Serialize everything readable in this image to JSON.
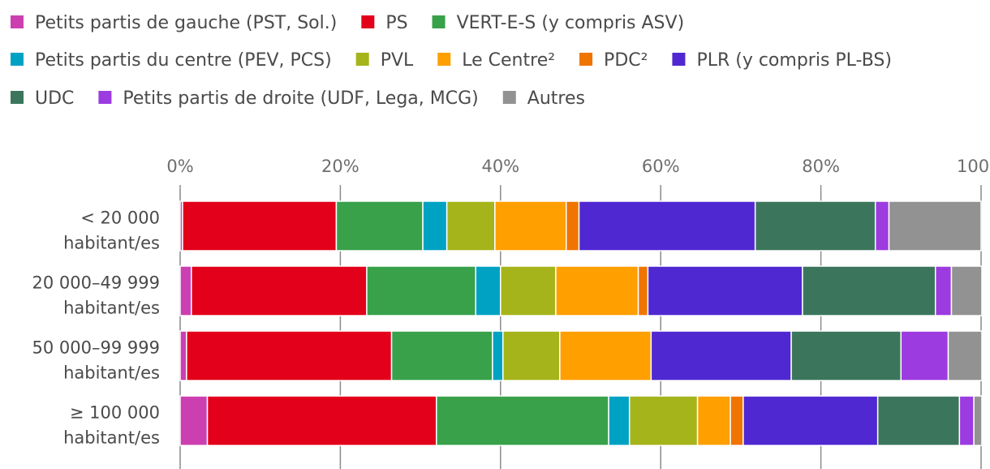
{
  "chart_data": {
    "type": "bar",
    "orientation": "horizontal",
    "stacked": true,
    "xlim": [
      0,
      100
    ],
    "ticks": [
      "0%",
      "20%",
      "40%",
      "60%",
      "80%",
      "100%"
    ],
    "tick_values": [
      0,
      20,
      40,
      60,
      80,
      100
    ],
    "categories": [
      [
        "< 20 000",
        "habitant/es"
      ],
      [
        "20 000–49 999",
        "habitant/es"
      ],
      [
        "50 000–99 999",
        "habitant/es"
      ],
      [
        "≥ 100 000",
        "habitant/es"
      ]
    ],
    "series": [
      {
        "name": "Petits partis de gauche (PST, Sol.)",
        "color": "#cc3fb0",
        "values": [
          0.3,
          1.4,
          0.8,
          3.4
        ]
      },
      {
        "name": "PS",
        "color": "#e2001a",
        "values": [
          19.2,
          21.9,
          25.6,
          28.6
        ]
      },
      {
        "name": "VERT-E-S (y compris ASV)",
        "color": "#38a14a",
        "values": [
          10.8,
          13.6,
          12.6,
          21.5
        ]
      },
      {
        "name": "Petits partis du centre (PEV, PCS)",
        "color": "#00a2c4",
        "values": [
          3.0,
          3.1,
          1.3,
          2.6
        ]
      },
      {
        "name": "PVL",
        "color": "#a5b41a",
        "values": [
          6.0,
          6.9,
          7.1,
          8.5
        ]
      },
      {
        "name": "Le Centre²",
        "color": "#ff9f00",
        "values": [
          8.9,
          10.3,
          11.4,
          4.1
        ]
      },
      {
        "name": "PDC²",
        "color": "#f07400",
        "values": [
          1.6,
          1.2,
          0,
          1.6
        ]
      },
      {
        "name": "PLR (y compris PL-BS)",
        "color": "#5028d2",
        "values": [
          22.0,
          19.3,
          17.5,
          16.8
        ]
      },
      {
        "name": "UDC",
        "color": "#3b765c",
        "values": [
          15.0,
          16.6,
          13.7,
          10.2
        ]
      },
      {
        "name": "Petits partis de droite (UDF, Lega, MCG)",
        "color": "#9c3be0",
        "values": [
          1.7,
          2.0,
          5.9,
          1.8
        ]
      },
      {
        "name": "Autres",
        "color": "#929292",
        "values": [
          11.5,
          3.8,
          4.2,
          1.0
        ]
      }
    ],
    "legend_rows": [
      [
        "Petits partis de gauche (PST, Sol.)",
        "PS",
        "VERT-E-S (y compris ASV)"
      ],
      [
        "Petits partis du centre (PEV, PCS)",
        "PVL",
        "Le Centre²",
        "PDC²",
        "PLR (y compris PL-BS)"
      ],
      [
        "UDC",
        "Petits partis de droite (UDF, Lega, MCG)",
        "Autres"
      ]
    ],
    "legend_position": "top",
    "grid": true
  }
}
